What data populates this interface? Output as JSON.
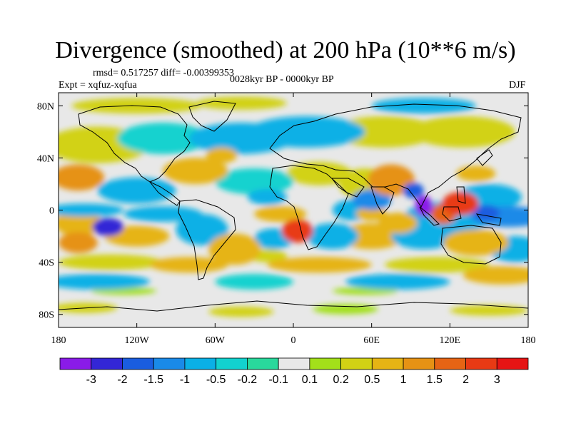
{
  "header": {
    "title": "Divergence (smoothed) at 200 hPa (10**6 m/s)",
    "stats": "rmsd= 0.517257 diff= -0.00399353",
    "experiment": "Expt = xqfuz-xqfua",
    "period": "0028kyr BP - 0000kyr BP",
    "season": "DJF"
  },
  "chart_data": {
    "type": "heatmap",
    "title": "Divergence (smoothed) at 200 hPa (10**6 m/s)",
    "xlabel": "",
    "ylabel": "",
    "xlim": [
      -180,
      180
    ],
    "ylim": [
      -90,
      90
    ],
    "x_ticks": [
      {
        "value": -180,
        "label": "180"
      },
      {
        "value": -120,
        "label": "120W"
      },
      {
        "value": -60,
        "label": "60W"
      },
      {
        "value": 0,
        "label": "0"
      },
      {
        "value": 60,
        "label": "60E"
      },
      {
        "value": 120,
        "label": "120E"
      },
      {
        "value": 180,
        "label": "180"
      }
    ],
    "y_ticks": [
      {
        "value": 80,
        "label": "80N"
      },
      {
        "value": 40,
        "label": "40N"
      },
      {
        "value": 0,
        "label": "0"
      },
      {
        "value": -40,
        "label": "40S"
      },
      {
        "value": -80,
        "label": "80S"
      }
    ],
    "colorbar": {
      "boundaries": [
        "-3",
        "-2",
        "-1.5",
        "-1",
        "-0.5",
        "-0.2",
        "-0.1",
        "0.1",
        "0.2",
        "0.5",
        "1",
        "1.5",
        "2",
        "3"
      ],
      "colors": [
        "#8a1be8",
        "#3326d6",
        "#1a5de0",
        "#1a8ae8",
        "#0ab0e6",
        "#12d2cf",
        "#29d99c",
        "#e8e8e8",
        "#a3e01a",
        "#d2d214",
        "#e6b414",
        "#e69214",
        "#e66414",
        "#e83a14",
        "#e61414"
      ]
    },
    "features": [
      {
        "name": "strong divergence maximum, Indonesia / South China Sea",
        "lon": 100,
        "lat": 3,
        "value": -3
      },
      {
        "name": "convergence maximum, Philippines / western Pacific",
        "lon": 128,
        "lat": 5,
        "value": 2.5
      },
      {
        "name": "divergence maximum, subtropical South Pacific",
        "lon": -142,
        "lat": -13,
        "value": -2.5
      },
      {
        "name": "convergence maximum, Gulf of Guinea",
        "lon": 3,
        "lat": -16,
        "value": 2.5
      },
      {
        "name": "convergence, equatorial Indian Ocean",
        "lon": 80,
        "lat": 25,
        "value": 1.5
      }
    ]
  }
}
